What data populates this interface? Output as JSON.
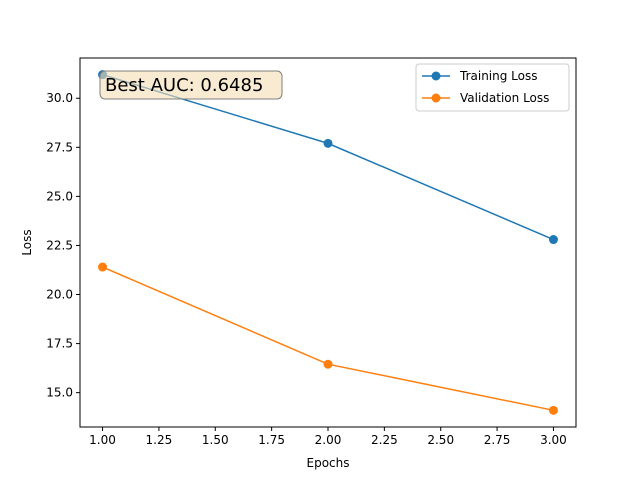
{
  "chart_data": {
    "type": "line",
    "title": "",
    "xlabel": "Epochs",
    "ylabel": "Loss",
    "xlim": [
      0.9,
      3.1
    ],
    "ylim": [
      13.25,
      32.05
    ],
    "x_ticks": [
      1.0,
      1.25,
      1.5,
      1.75,
      2.0,
      2.25,
      2.5,
      2.75,
      3.0
    ],
    "x_tick_labels": [
      "1.00",
      "1.25",
      "1.50",
      "1.75",
      "2.00",
      "2.25",
      "2.50",
      "2.75",
      "3.00"
    ],
    "y_ticks": [
      15.0,
      17.5,
      20.0,
      22.5,
      25.0,
      27.5,
      30.0
    ],
    "y_tick_labels": [
      "15.0",
      "17.5",
      "20.0",
      "22.5",
      "25.0",
      "27.5",
      "30.0"
    ],
    "grid": false,
    "legend_position": "top-right",
    "x": [
      1,
      2,
      3
    ],
    "series": [
      {
        "name": "Training Loss",
        "values": [
          31.2,
          27.7,
          22.8
        ],
        "color": "#1f77b4",
        "marker": "circle"
      },
      {
        "name": "Validation Loss",
        "values": [
          21.4,
          16.45,
          14.1
        ],
        "color": "#ff7f0e",
        "marker": "circle"
      }
    ],
    "annotation": {
      "text": "Best AUC: 0.6485",
      "box_fill": "#f5deb3",
      "box_stroke": "#7f7f7f"
    }
  }
}
